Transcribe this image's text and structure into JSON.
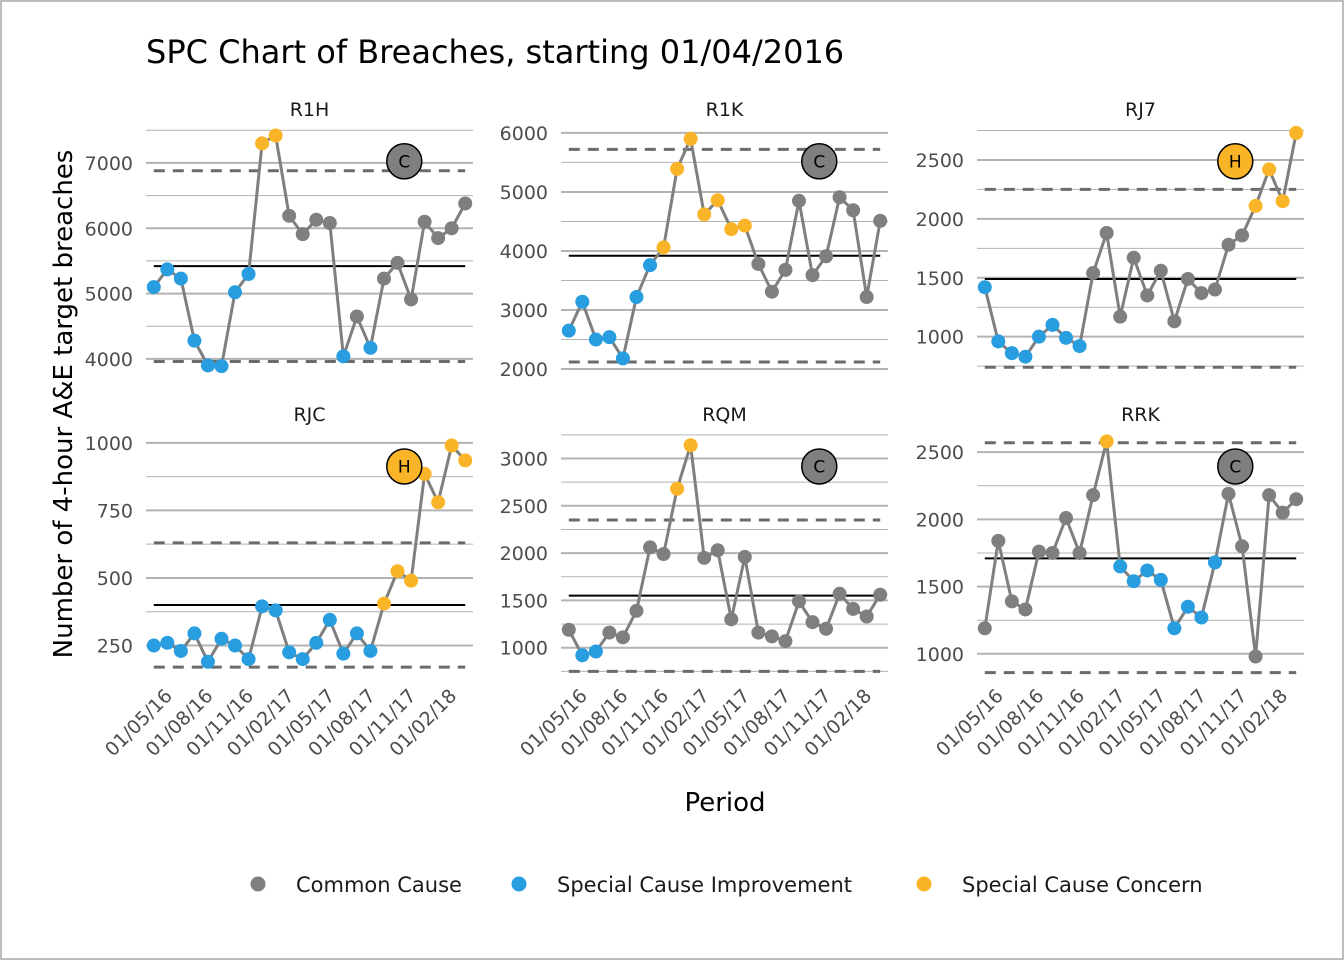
{
  "chart_data": {
    "type": "line",
    "title": "SPC Chart of Breaches, starting 01/04/2016",
    "xlabel": "Period",
    "ylabel": "Number of 4-hour A&E target breaches",
    "x_tick_labels": [
      "01/05/16",
      "01/08/16",
      "01/11/16",
      "01/02/17",
      "01/05/17",
      "01/08/17",
      "01/11/17",
      "01/02/18"
    ],
    "x": [
      "01/04/16",
      "01/05/16",
      "01/06/16",
      "01/07/16",
      "01/08/16",
      "01/09/16",
      "01/10/16",
      "01/11/16",
      "01/12/16",
      "01/01/17",
      "01/02/17",
      "01/03/17",
      "01/04/17",
      "01/05/17",
      "01/06/17",
      "01/07/17",
      "01/08/17",
      "01/09/17",
      "01/10/17",
      "01/11/17",
      "01/12/17",
      "01/01/18",
      "01/02/18",
      "01/03/18"
    ],
    "legend": {
      "position": "bottom",
      "entries": [
        {
          "label": "Common Cause",
          "color": "#7f7f7f"
        },
        {
          "label": "Special Cause Improvement",
          "color": "#289de0"
        },
        {
          "label": "Special Cause Concern",
          "color": "#fab428"
        }
      ]
    },
    "colors": {
      "common": "#7f7f7f",
      "improvement": "#289de0",
      "concern": "#fab428",
      "line": "#7f7f7f",
      "mean": "#000000",
      "limit": "#6b6b6b",
      "grid": "#b3b3b3"
    },
    "panels": [
      {
        "name": "R1H",
        "ylim": [
          3800,
          7550
        ],
        "yticks": [
          4000,
          5000,
          6000,
          7000
        ],
        "mean": 5420,
        "ucl": 6880,
        "lcl": 3960,
        "badge": "C",
        "values": [
          5100,
          5370,
          5230,
          4280,
          3900,
          3890,
          5020,
          5300,
          7300,
          7420,
          6190,
          5910,
          6130,
          6080,
          4040,
          4650,
          4170,
          5230,
          5470,
          4910,
          6100,
          5850,
          6000,
          6380
        ],
        "states": [
          "i",
          "i",
          "i",
          "i",
          "i",
          "i",
          "i",
          "i",
          "c",
          "c",
          "n",
          "n",
          "n",
          "n",
          "i",
          "n",
          "i",
          "n",
          "n",
          "n",
          "n",
          "n",
          "n",
          "n"
        ]
      },
      {
        "name": "R1K",
        "ylim": [
          1950,
          6100
        ],
        "yticks": [
          2000,
          3000,
          4000,
          5000,
          6000
        ],
        "mean": 3920,
        "ucl": 5720,
        "lcl": 2120,
        "badge": "C",
        "values": [
          2650,
          3140,
          2500,
          2540,
          2180,
          3220,
          3760,
          4060,
          5390,
          5900,
          4620,
          4860,
          4370,
          4430,
          3780,
          3310,
          3680,
          4850,
          3590,
          3910,
          4910,
          4690,
          3220,
          4510
        ],
        "states": [
          "i",
          "i",
          "i",
          "i",
          "i",
          "i",
          "i",
          "c",
          "c",
          "c",
          "c",
          "c",
          "c",
          "c",
          "n",
          "n",
          "n",
          "n",
          "n",
          "n",
          "n",
          "n",
          "n",
          "n"
        ]
      },
      {
        "name": "RJ7",
        "ylim": [
          700,
          2780
        ],
        "yticks": [
          1000,
          1500,
          2000,
          2500
        ],
        "mean": 1490,
        "ucl": 2250,
        "lcl": 740,
        "badge": "H",
        "values": [
          1420,
          960,
          860,
          830,
          1000,
          1100,
          990,
          920,
          1540,
          1880,
          1170,
          1670,
          1350,
          1560,
          1130,
          1490,
          1370,
          1400,
          1780,
          1860,
          2110,
          2420,
          2150,
          2730
        ],
        "states": [
          "i",
          "i",
          "i",
          "i",
          "i",
          "i",
          "i",
          "i",
          "n",
          "n",
          "n",
          "n",
          "n",
          "n",
          "n",
          "n",
          "n",
          "n",
          "n",
          "n",
          "c",
          "c",
          "c",
          "c"
        ]
      },
      {
        "name": "RJC",
        "ylim": [
          130,
          1040
        ],
        "yticks": [
          250,
          500,
          750,
          1000
        ],
        "mean": 400,
        "ucl": 630,
        "lcl": 170,
        "badge": "H",
        "values": [
          250,
          260,
          230,
          295,
          190,
          275,
          250,
          200,
          395,
          380,
          225,
          200,
          260,
          345,
          220,
          295,
          230,
          405,
          525,
          490,
          885,
          780,
          990,
          935
        ],
        "states": [
          "i",
          "i",
          "i",
          "i",
          "i",
          "i",
          "i",
          "i",
          "i",
          "i",
          "i",
          "i",
          "i",
          "i",
          "i",
          "i",
          "i",
          "c",
          "c",
          "c",
          "c",
          "c",
          "c",
          "c"
        ]
      },
      {
        "name": "RQM",
        "ylim": [
          680,
          3280
        ],
        "yticks": [
          1000,
          1500,
          2000,
          2500,
          3000
        ],
        "mean": 1550,
        "ucl": 2350,
        "lcl": 750,
        "badge": "C",
        "values": [
          1190,
          920,
          960,
          1160,
          1110,
          1390,
          2060,
          1990,
          2680,
          3140,
          1950,
          2030,
          1300,
          1960,
          1160,
          1120,
          1070,
          1490,
          1270,
          1200,
          1570,
          1410,
          1330,
          1560
        ],
        "states": [
          "n",
          "i",
          "i",
          "n",
          "n",
          "n",
          "n",
          "n",
          "c",
          "c",
          "n",
          "n",
          "n",
          "n",
          "n",
          "n",
          "n",
          "n",
          "n",
          "n",
          "n",
          "n",
          "n",
          "n"
        ]
      },
      {
        "name": "RRK",
        "ylim": [
          820,
          2650
        ],
        "yticks": [
          1000,
          1500,
          2000,
          2500
        ],
        "mean": 1710,
        "ucl": 2570,
        "lcl": 860,
        "badge": "C",
        "values": [
          1190,
          1840,
          1390,
          1330,
          1760,
          1750,
          2010,
          1750,
          2180,
          2580,
          1650,
          1540,
          1620,
          1550,
          1190,
          1350,
          1270,
          1680,
          2190,
          1800,
          980,
          2180,
          2050,
          2150
        ],
        "states": [
          "n",
          "n",
          "n",
          "n",
          "n",
          "n",
          "n",
          "n",
          "n",
          "c",
          "i",
          "i",
          "i",
          "i",
          "i",
          "i",
          "i",
          "i",
          "n",
          "n",
          "n",
          "n",
          "n",
          "n"
        ]
      }
    ]
  }
}
